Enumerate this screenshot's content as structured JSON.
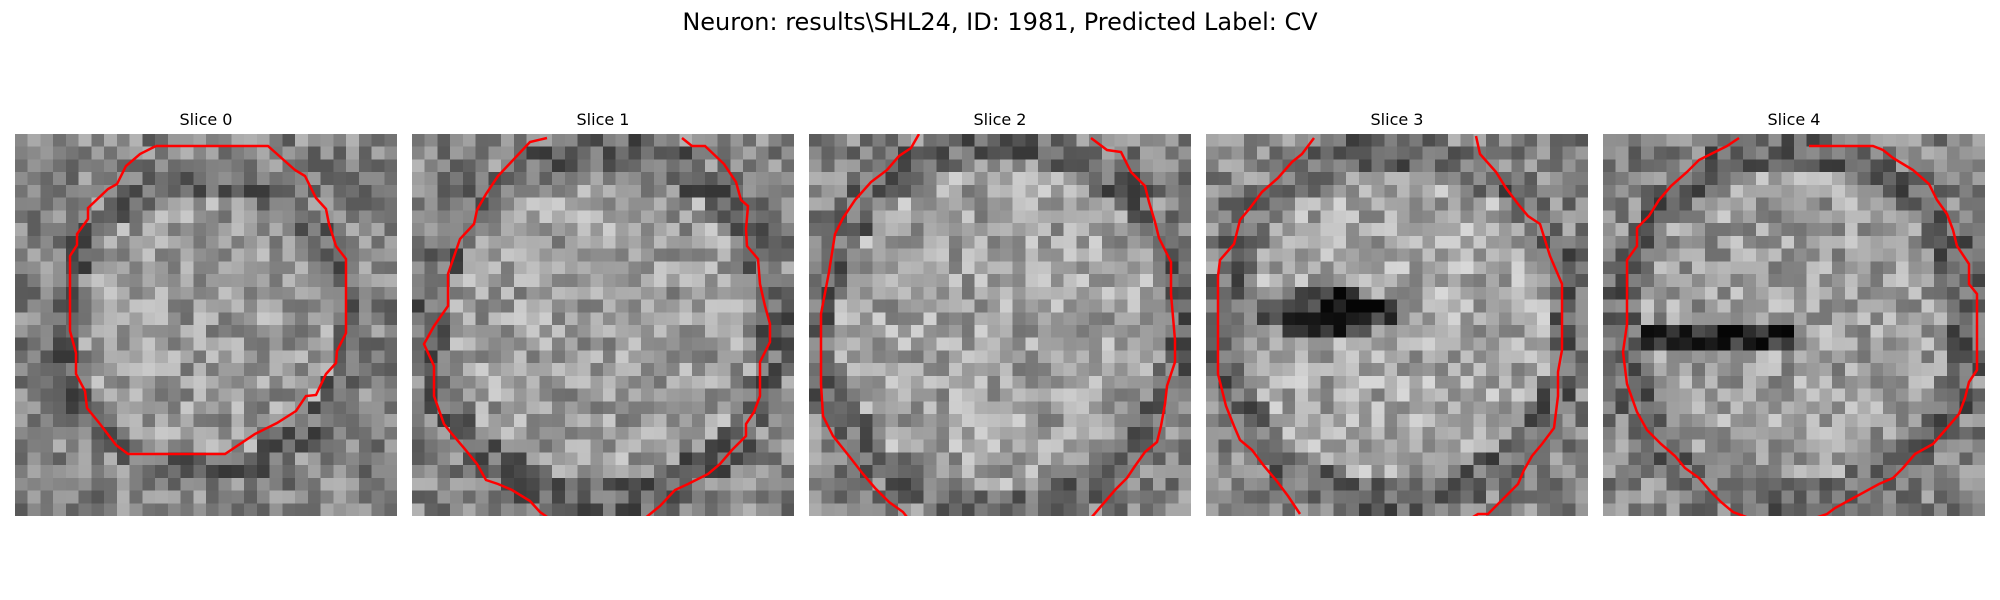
{
  "figure": {
    "title": "Neuron: results\\SHL24, ID: 1981, Predicted Label: CV",
    "contour_color": "#ff0000",
    "colormap": "gray"
  },
  "slices": [
    {
      "title": "Slice 0"
    },
    {
      "title": "Slice 1"
    },
    {
      "title": "Slice 2"
    },
    {
      "title": "Slice 3"
    },
    {
      "title": "Slice 4"
    }
  ]
}
